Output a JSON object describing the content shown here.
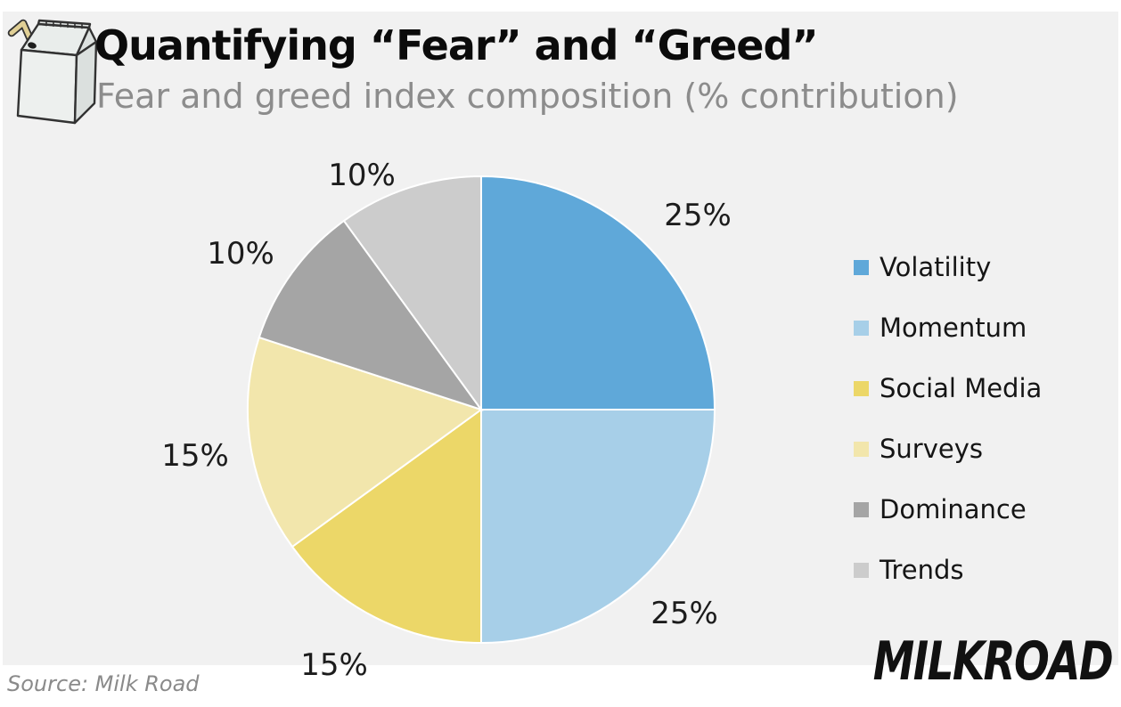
{
  "header": {
    "title": "Quantifying “Fear” and “Greed”",
    "subtitle": "Fear and greed index composition (% contribution)"
  },
  "chart_data": {
    "type": "pie",
    "title": "Quantifying “Fear” and “Greed”",
    "subtitle": "Fear and greed index composition (% contribution)",
    "categories": [
      "Volatility",
      "Momentum",
      "Social Media",
      "Surveys",
      "Dominance",
      "Trends"
    ],
    "values": [
      25,
      25,
      15,
      15,
      10,
      10
    ],
    "unit": "%",
    "slice_labels": [
      "25%",
      "25%",
      "15%",
      "15%",
      "10%",
      "10%"
    ],
    "colors": [
      "#5fa8d9",
      "#a7cfe8",
      "#ecd768",
      "#f2e6ac",
      "#a5a5a5",
      "#cccccc"
    ],
    "start_angle_deg": 0,
    "direction": "clockwise",
    "legend_position": "right",
    "grid": false
  },
  "footer": {
    "source": "Source: Milk Road",
    "brand": "MILKROAD"
  },
  "icons": {
    "logo": "milk-carton-icon"
  },
  "colors": {
    "panel_background": "#f1f1f1",
    "page_background": "#ffffff",
    "title_text": "#0b0b0b",
    "subtitle_text": "#8c8c8c",
    "label_text": "#1c1c1c",
    "legend_text": "#151515",
    "source_text": "#8a8a8a",
    "brand_text": "#111111",
    "slice_border": "#ffffff"
  }
}
